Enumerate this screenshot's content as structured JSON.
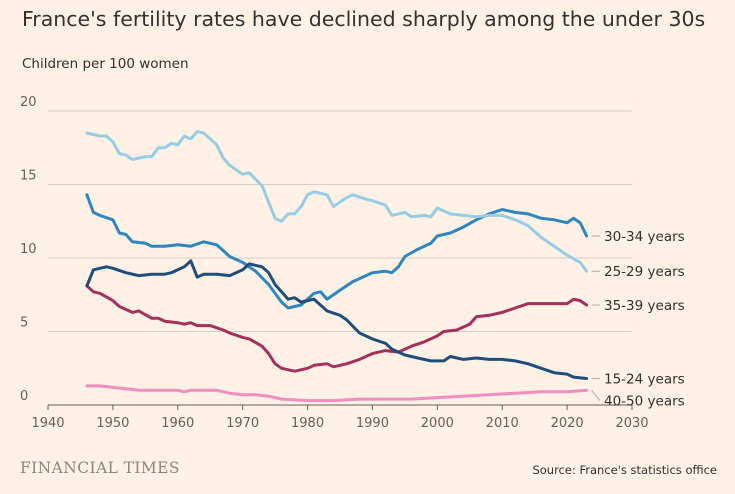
{
  "title": "France's fertility rates have declined sharply among the under 30s",
  "subtitle": "Children per 100 women",
  "brand": "FINANCIAL TIMES",
  "source": "Source: France's statistics office",
  "chart_data": {
    "type": "line",
    "xlim": [
      1940,
      2030
    ],
    "ylim": [
      0,
      20
    ],
    "x_ticks": [
      1940,
      1950,
      1960,
      1970,
      1980,
      1990,
      2000,
      2010,
      2020,
      2030
    ],
    "y_ticks": [
      0,
      5,
      10,
      15,
      20
    ],
    "grid": "horizontal",
    "series": [
      {
        "name": "30-34 years",
        "color": "#2e86c1",
        "points": [
          [
            1946,
            14.3
          ],
          [
            1947,
            13.1
          ],
          [
            1948,
            12.9
          ],
          [
            1950,
            12.6
          ],
          [
            1951,
            11.7
          ],
          [
            1952,
            11.6
          ],
          [
            1953,
            11.1
          ],
          [
            1955,
            11.0
          ],
          [
            1956,
            10.8
          ],
          [
            1958,
            10.8
          ],
          [
            1960,
            10.9
          ],
          [
            1962,
            10.8
          ],
          [
            1964,
            11.1
          ],
          [
            1966,
            10.9
          ],
          [
            1968,
            10.1
          ],
          [
            1970,
            9.7
          ],
          [
            1972,
            9.1
          ],
          [
            1974,
            8.2
          ],
          [
            1976,
            7.0
          ],
          [
            1977,
            6.6
          ],
          [
            1979,
            6.8
          ],
          [
            1981,
            7.6
          ],
          [
            1982,
            7.7
          ],
          [
            1983,
            7.2
          ],
          [
            1985,
            7.8
          ],
          [
            1987,
            8.4
          ],
          [
            1988,
            8.6
          ],
          [
            1990,
            9.0
          ],
          [
            1992,
            9.1
          ],
          [
            1993,
            9.0
          ],
          [
            1994,
            9.4
          ],
          [
            1995,
            10.1
          ],
          [
            1997,
            10.6
          ],
          [
            1999,
            11.0
          ],
          [
            2000,
            11.5
          ],
          [
            2002,
            11.7
          ],
          [
            2004,
            12.1
          ],
          [
            2006,
            12.6
          ],
          [
            2008,
            13.0
          ],
          [
            2010,
            13.3
          ],
          [
            2012,
            13.1
          ],
          [
            2014,
            13.0
          ],
          [
            2016,
            12.7
          ],
          [
            2018,
            12.6
          ],
          [
            2020,
            12.4
          ],
          [
            2021,
            12.7
          ],
          [
            2022,
            12.4
          ],
          [
            2023,
            11.5
          ]
        ]
      },
      {
        "name": "25-29 years",
        "color": "#96cce4",
        "points": [
          [
            1946,
            18.5
          ],
          [
            1947,
            18.4
          ],
          [
            1948,
            18.3
          ],
          [
            1949,
            18.3
          ],
          [
            1950,
            17.9
          ],
          [
            1951,
            17.1
          ],
          [
            1952,
            17.0
          ],
          [
            1953,
            16.7
          ],
          [
            1955,
            16.9
          ],
          [
            1956,
            16.9
          ],
          [
            1957,
            17.5
          ],
          [
            1958,
            17.5
          ],
          [
            1959,
            17.8
          ],
          [
            1960,
            17.7
          ],
          [
            1961,
            18.3
          ],
          [
            1962,
            18.1
          ],
          [
            1963,
            18.6
          ],
          [
            1964,
            18.5
          ],
          [
            1966,
            17.7
          ],
          [
            1967,
            16.8
          ],
          [
            1968,
            16.3
          ],
          [
            1970,
            15.7
          ],
          [
            1971,
            15.8
          ],
          [
            1973,
            14.9
          ],
          [
            1974,
            13.8
          ],
          [
            1975,
            12.7
          ],
          [
            1976,
            12.5
          ],
          [
            1977,
            13.0
          ],
          [
            1978,
            13.0
          ],
          [
            1979,
            13.5
          ],
          [
            1980,
            14.3
          ],
          [
            1981,
            14.5
          ],
          [
            1983,
            14.3
          ],
          [
            1984,
            13.5
          ],
          [
            1986,
            14.1
          ],
          [
            1987,
            14.3
          ],
          [
            1989,
            14.0
          ],
          [
            1990,
            13.9
          ],
          [
            1992,
            13.6
          ],
          [
            1993,
            12.9
          ],
          [
            1995,
            13.1
          ],
          [
            1996,
            12.8
          ],
          [
            1998,
            12.9
          ],
          [
            1999,
            12.8
          ],
          [
            2000,
            13.4
          ],
          [
            2002,
            13.0
          ],
          [
            2004,
            12.9
          ],
          [
            2006,
            12.8
          ],
          [
            2008,
            12.9
          ],
          [
            2010,
            12.9
          ],
          [
            2012,
            12.6
          ],
          [
            2014,
            12.2
          ],
          [
            2016,
            11.4
          ],
          [
            2018,
            10.8
          ],
          [
            2020,
            10.2
          ],
          [
            2022,
            9.7
          ],
          [
            2023,
            9.1
          ]
        ]
      },
      {
        "name": "35-39 years",
        "color": "#a3315c",
        "points": [
          [
            1946,
            8.1
          ],
          [
            1947,
            7.7
          ],
          [
            1948,
            7.6
          ],
          [
            1950,
            7.1
          ],
          [
            1951,
            6.7
          ],
          [
            1953,
            6.3
          ],
          [
            1954,
            6.4
          ],
          [
            1956,
            5.9
          ],
          [
            1957,
            5.9
          ],
          [
            1958,
            5.7
          ],
          [
            1960,
            5.6
          ],
          [
            1961,
            5.5
          ],
          [
            1962,
            5.6
          ],
          [
            1963,
            5.4
          ],
          [
            1965,
            5.4
          ],
          [
            1967,
            5.1
          ],
          [
            1968,
            4.9
          ],
          [
            1970,
            4.6
          ],
          [
            1971,
            4.5
          ],
          [
            1973,
            4.0
          ],
          [
            1974,
            3.5
          ],
          [
            1975,
            2.8
          ],
          [
            1976,
            2.5
          ],
          [
            1978,
            2.3
          ],
          [
            1980,
            2.5
          ],
          [
            1981,
            2.7
          ],
          [
            1983,
            2.8
          ],
          [
            1984,
            2.6
          ],
          [
            1986,
            2.8
          ],
          [
            1988,
            3.1
          ],
          [
            1990,
            3.5
          ],
          [
            1992,
            3.7
          ],
          [
            1994,
            3.6
          ],
          [
            1996,
            4.0
          ],
          [
            1998,
            4.3
          ],
          [
            2000,
            4.7
          ],
          [
            2001,
            5.0
          ],
          [
            2003,
            5.1
          ],
          [
            2005,
            5.5
          ],
          [
            2006,
            6.0
          ],
          [
            2008,
            6.1
          ],
          [
            2010,
            6.3
          ],
          [
            2012,
            6.6
          ],
          [
            2014,
            6.9
          ],
          [
            2016,
            6.9
          ],
          [
            2018,
            6.9
          ],
          [
            2020,
            6.9
          ],
          [
            2021,
            7.2
          ],
          [
            2022,
            7.1
          ],
          [
            2023,
            6.8
          ]
        ]
      },
      {
        "name": "15-24 years",
        "color": "#1f4e79",
        "points": [
          [
            1946,
            8.1
          ],
          [
            1947,
            9.2
          ],
          [
            1948,
            9.3
          ],
          [
            1949,
            9.4
          ],
          [
            1950,
            9.3
          ],
          [
            1952,
            9.0
          ],
          [
            1954,
            8.8
          ],
          [
            1956,
            8.9
          ],
          [
            1958,
            8.9
          ],
          [
            1959,
            9.0
          ],
          [
            1961,
            9.4
          ],
          [
            1962,
            9.8
          ],
          [
            1963,
            8.7
          ],
          [
            1964,
            8.9
          ],
          [
            1966,
            8.9
          ],
          [
            1968,
            8.8
          ],
          [
            1970,
            9.2
          ],
          [
            1971,
            9.6
          ],
          [
            1973,
            9.4
          ],
          [
            1974,
            9.0
          ],
          [
            1975,
            8.2
          ],
          [
            1977,
            7.2
          ],
          [
            1978,
            7.3
          ],
          [
            1979,
            7.0
          ],
          [
            1981,
            7.2
          ],
          [
            1983,
            6.4
          ],
          [
            1985,
            6.1
          ],
          [
            1986,
            5.8
          ],
          [
            1988,
            4.9
          ],
          [
            1990,
            4.5
          ],
          [
            1992,
            4.2
          ],
          [
            1993,
            3.8
          ],
          [
            1995,
            3.4
          ],
          [
            1997,
            3.2
          ],
          [
            1999,
            3.0
          ],
          [
            2001,
            3.0
          ],
          [
            2002,
            3.3
          ],
          [
            2004,
            3.1
          ],
          [
            2006,
            3.2
          ],
          [
            2008,
            3.1
          ],
          [
            2010,
            3.1
          ],
          [
            2012,
            3.0
          ],
          [
            2014,
            2.8
          ],
          [
            2016,
            2.5
          ],
          [
            2018,
            2.2
          ],
          [
            2020,
            2.1
          ],
          [
            2021,
            1.9
          ],
          [
            2023,
            1.8
          ]
        ]
      },
      {
        "name": "40-50 years",
        "color": "#ef8ec1",
        "points": [
          [
            1946,
            1.3
          ],
          [
            1948,
            1.3
          ],
          [
            1950,
            1.2
          ],
          [
            1952,
            1.1
          ],
          [
            1954,
            1.0
          ],
          [
            1958,
            1.0
          ],
          [
            1960,
            1.0
          ],
          [
            1961,
            0.9
          ],
          [
            1962,
            1.0
          ],
          [
            1966,
            1.0
          ],
          [
            1968,
            0.8
          ],
          [
            1970,
            0.7
          ],
          [
            1972,
            0.7
          ],
          [
            1974,
            0.6
          ],
          [
            1976,
            0.4
          ],
          [
            1980,
            0.3
          ],
          [
            1984,
            0.3
          ],
          [
            1988,
            0.4
          ],
          [
            1992,
            0.4
          ],
          [
            1996,
            0.4
          ],
          [
            2000,
            0.5
          ],
          [
            2004,
            0.6
          ],
          [
            2008,
            0.7
          ],
          [
            2012,
            0.8
          ],
          [
            2016,
            0.9
          ],
          [
            2020,
            0.9
          ],
          [
            2023,
            1.0
          ]
        ]
      }
    ],
    "legend": [
      {
        "text": "30-34 years",
        "series": 0
      },
      {
        "text": "25-29 years",
        "series": 1
      },
      {
        "text": "35-39 years",
        "series": 2
      },
      {
        "text": "15-24 years",
        "series": 3
      },
      {
        "text": "40-50 years",
        "series": 4
      }
    ]
  }
}
